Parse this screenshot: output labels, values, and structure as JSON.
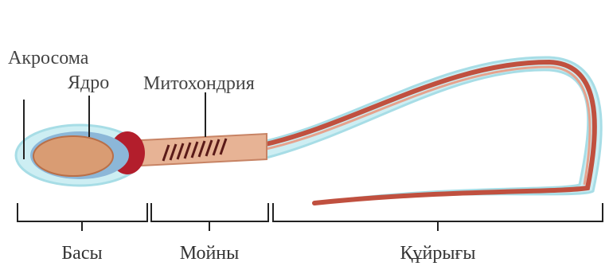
{
  "labels": {
    "acrosome": "Акросома",
    "nucleus": "Ядро",
    "mitochondria": "Митохондрия"
  },
  "sections": {
    "head": "Басы",
    "neck": "Мойны",
    "tail": "Құйрығы"
  }
}
